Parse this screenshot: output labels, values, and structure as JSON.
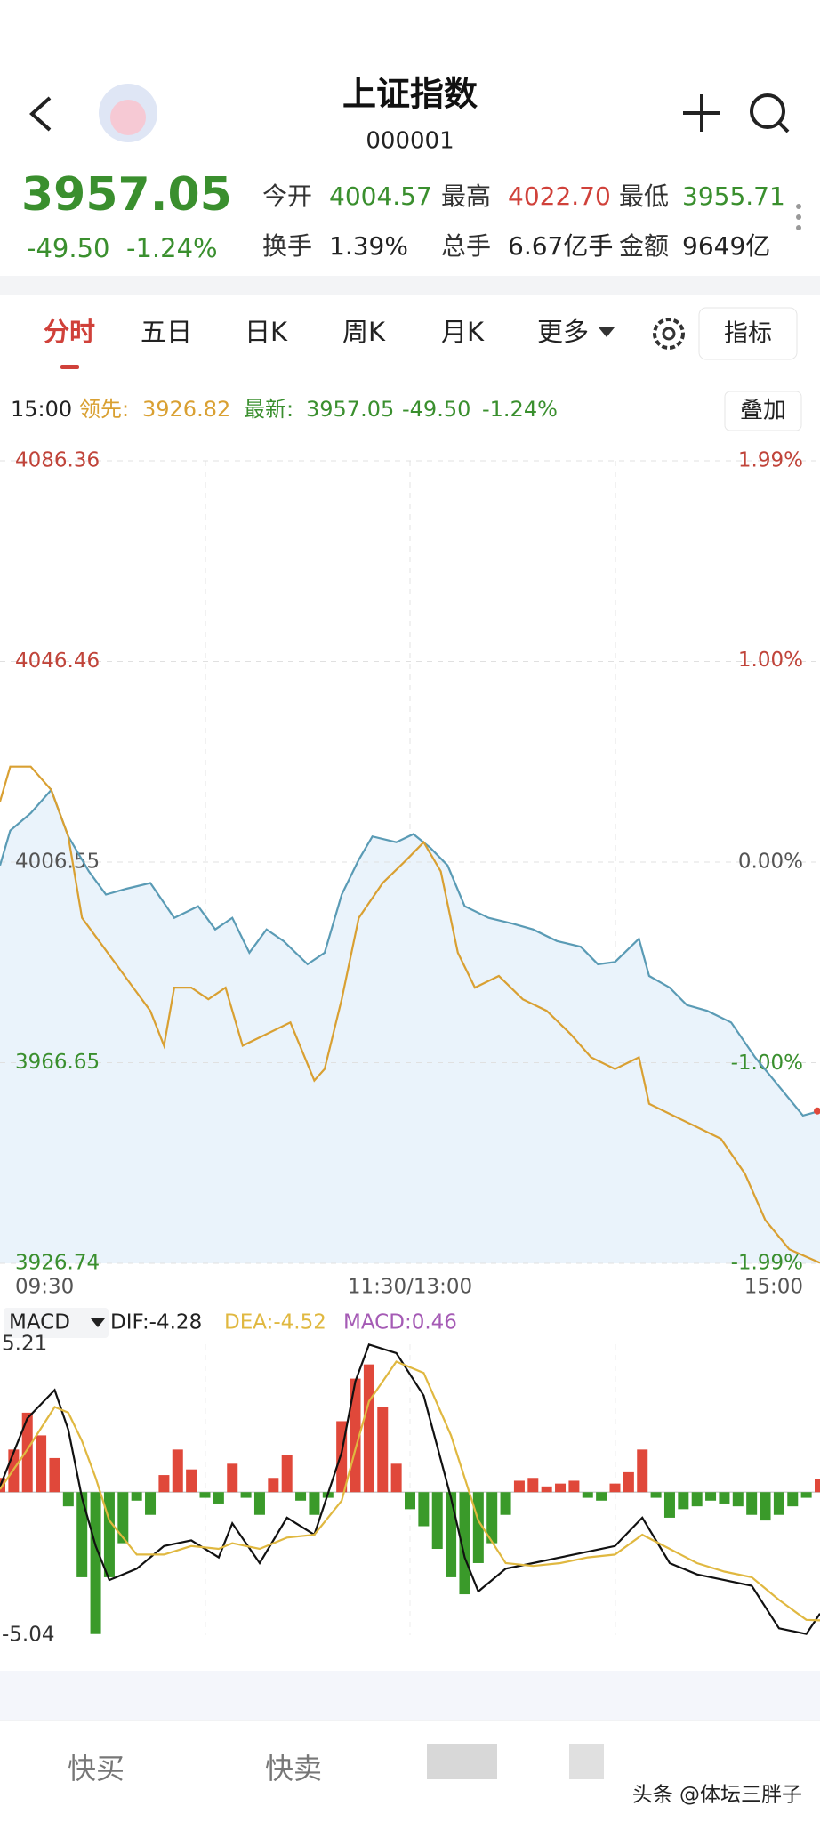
{
  "header": {
    "title": "上证指数",
    "code": "000001"
  },
  "quote": {
    "price": "3957.05",
    "change": "-49.50",
    "change_pct": "-1.24%",
    "stats": [
      {
        "label": "今开",
        "value": "4004.57",
        "color": "#3a8f2e"
      },
      {
        "label": "最高",
        "value": "4022.70",
        "color": "#d0413a"
      },
      {
        "label": "最低",
        "value": "3955.71",
        "color": "#3a8f2e"
      },
      {
        "label": "换手",
        "value": "1.39%",
        "color": "#222222"
      },
      {
        "label": "总手",
        "value": "6.67亿手",
        "color": "#222222"
      },
      {
        "label": "金额",
        "value": "9649亿",
        "color": "#222222"
      }
    ]
  },
  "tabs": [
    "分时",
    "五日",
    "日K",
    "周K",
    "月K",
    "更多"
  ],
  "indicator_button": "指标",
  "info": {
    "time": "15:00",
    "leader_label": "领先:",
    "leader": "3926.82",
    "latest_label": "最新:",
    "latest": "3957.05",
    "change": "-49.50",
    "change_pct": "-1.24%"
  },
  "overlay_button": "叠加",
  "chart_data": [
    {
      "type": "line",
      "xlim": [
        0,
        240
      ],
      "xticks": [
        {
          "value": 0,
          "label": "09:30"
        },
        {
          "value": 120,
          "label": "11:30/13:00"
        },
        {
          "value": 240,
          "label": "15:00"
        }
      ],
      "ylim": [
        3926.74,
        4086.36
      ],
      "yticks": [
        4086.36,
        4046.46,
        4006.55,
        3966.65,
        3926.74
      ],
      "y2lim": [
        -1.99,
        1.99
      ],
      "y2ticks": [
        {
          "value": 1.99,
          "label": "1.99%"
        },
        {
          "value": 1.0,
          "label": "1.00%"
        },
        {
          "value": 0,
          "label": "0.00%"
        },
        {
          "value": -1.0,
          "label": "-1.00%"
        },
        {
          "value": -1.99,
          "label": "-1.99%"
        }
      ],
      "grid": true,
      "series": [
        {
          "color": "#5a9bb5",
          "area_color": "#eaf3fb",
          "x": [
            0,
            3,
            9,
            15,
            20,
            26,
            31,
            37,
            44,
            51,
            58,
            63,
            68,
            73,
            78,
            83,
            90,
            95,
            100,
            105,
            109,
            116,
            121,
            126,
            131,
            136,
            143,
            150,
            156,
            163,
            170,
            175,
            180,
            187,
            190,
            196,
            201,
            207,
            214,
            221,
            228,
            235,
            240
          ],
          "values": [
            4005.87,
            4012.81,
            4016.28,
            4020.9,
            4011.65,
            4004.71,
            4000.09,
            4001.24,
            4002.4,
            3995.46,
            3997.77,
            3993.15,
            3995.46,
            3988.52,
            3993.15,
            3990.83,
            3986.21,
            3988.52,
            4000.09,
            4007.02,
            4011.65,
            4010.49,
            4012.11,
            4009.34,
            4005.87,
            3997.77,
            3995.46,
            3994.3,
            3993.15,
            3990.83,
            3989.68,
            3986.21,
            3986.67,
            3991.3,
            3983.89,
            3981.58,
            3978.11,
            3976.96,
            3974.64,
            3967.7,
            3961.92,
            3956.14,
            3957.05
          ]
        },
        {
          "color": "#d9a032",
          "x": [
            0,
            3,
            9,
            15,
            20,
            24,
            29,
            34,
            39,
            44,
            48,
            51,
            56,
            61,
            66,
            71,
            78,
            85,
            92,
            95,
            100,
            105,
            112,
            119,
            124,
            129,
            134,
            139,
            146,
            153,
            160,
            167,
            173,
            180,
            187,
            190,
            197,
            204,
            211,
            218,
            224,
            231,
            240
          ],
          "values": [
            4018.59,
            4025.53,
            4025.53,
            4020.9,
            4011.65,
            3995.46,
            3990.83,
            3986.21,
            3981.58,
            3976.96,
            3970.02,
            3981.58,
            3981.58,
            3979.27,
            3981.58,
            3970.02,
            3972.33,
            3974.64,
            3963.08,
            3965.39,
            3979.27,
            3995.46,
            4002.4,
            4007.02,
            4010.49,
            4004.71,
            3988.52,
            3981.58,
            3983.89,
            3979.27,
            3976.96,
            3972.33,
            3967.7,
            3965.39,
            3967.7,
            3958.45,
            3956.14,
            3953.83,
            3951.51,
            3944.57,
            3935.32,
            3929.54,
            3926.82
          ]
        }
      ]
    },
    {
      "type": "macd",
      "title": "MACD",
      "labels": [
        "DIF:-4.28",
        "DEA:-4.52",
        "MACD:0.46"
      ],
      "label_colors": [
        "#222222",
        "#e0b840",
        "#a55bb5"
      ],
      "xlim": [
        0,
        240
      ],
      "ylim": [
        -5.04,
        5.21
      ],
      "yticks": [
        5.21,
        -5.04
      ],
      "up_color": "#e0483a",
      "down_color": "#3a9a2a",
      "histogram": {
        "x": [
          0,
          4,
          8,
          12,
          16,
          20,
          24,
          28,
          32,
          36,
          40,
          44,
          48,
          52,
          56,
          60,
          64,
          68,
          72,
          76,
          80,
          84,
          88,
          92,
          96,
          100,
          104,
          108,
          112,
          116,
          120,
          124,
          128,
          132,
          136,
          140,
          144,
          148,
          152,
          156,
          160,
          164,
          168,
          172,
          176,
          180,
          184,
          188,
          192,
          196,
          200,
          204,
          208,
          212,
          216,
          220,
          224,
          228,
          232,
          236,
          240
        ],
        "values": [
          0.5,
          1.5,
          2.8,
          2.0,
          1.2,
          -0.5,
          -3.0,
          -5.0,
          -3.0,
          -1.8,
          -0.3,
          -0.8,
          0.6,
          1.5,
          0.8,
          -0.2,
          -0.4,
          1.0,
          -0.2,
          -0.8,
          0.5,
          1.3,
          -0.3,
          -0.8,
          -0.2,
          2.5,
          4.0,
          4.5,
          3.0,
          1.0,
          -0.6,
          -1.2,
          -2.0,
          -3.0,
          -3.6,
          -2.5,
          -1.8,
          -0.8,
          0.4,
          0.5,
          0.2,
          0.3,
          0.4,
          -0.2,
          -0.3,
          0.3,
          0.7,
          1.5,
          -0.2,
          -0.9,
          -0.6,
          -0.5,
          -0.3,
          -0.4,
          -0.5,
          -0.8,
          -1.0,
          -0.8,
          -0.5,
          -0.2,
          0.46
        ]
      },
      "series": [
        {
          "color": "#111111",
          "x": [
            0,
            8,
            16,
            20,
            24,
            28,
            32,
            40,
            48,
            56,
            64,
            68,
            76,
            84,
            92,
            100,
            104,
            108,
            116,
            124,
            132,
            136,
            140,
            148,
            156,
            164,
            172,
            180,
            188,
            196,
            204,
            212,
            220,
            228,
            236,
            240
          ],
          "values": [
            0.2,
            2.6,
            3.6,
            2.2,
            -0.2,
            -1.9,
            -3.1,
            -2.7,
            -1.9,
            -1.7,
            -2.3,
            -1.1,
            -2.5,
            -0.9,
            -1.5,
            1.4,
            3.9,
            5.2,
            4.9,
            3.4,
            -0.2,
            -2.3,
            -3.5,
            -2.7,
            -2.5,
            -2.3,
            -2.1,
            -1.9,
            -0.9,
            -2.5,
            -2.9,
            -3.1,
            -3.3,
            -4.8,
            -5.0,
            -4.28
          ]
        },
        {
          "color": "#e0b840",
          "x": [
            0,
            8,
            16,
            20,
            24,
            28,
            32,
            40,
            48,
            56,
            64,
            68,
            76,
            84,
            92,
            100,
            104,
            108,
            116,
            124,
            132,
            136,
            140,
            148,
            156,
            164,
            172,
            180,
            188,
            196,
            204,
            212,
            220,
            228,
            236,
            240
          ],
          "values": [
            0.1,
            1.5,
            3.0,
            2.8,
            1.8,
            0.5,
            -1.0,
            -2.2,
            -2.2,
            -1.9,
            -2.0,
            -1.8,
            -2.0,
            -1.6,
            -1.5,
            -0.3,
            1.5,
            3.2,
            4.6,
            4.2,
            2.0,
            0.5,
            -1.0,
            -2.5,
            -2.6,
            -2.5,
            -2.3,
            -2.2,
            -1.5,
            -2.0,
            -2.5,
            -2.8,
            -3.0,
            -3.8,
            -4.5,
            -4.52
          ]
        }
      ]
    }
  ],
  "bottom": {
    "buttons": [
      "快买",
      "快卖"
    ],
    "watermark": "头条 @体坛三胖子"
  }
}
